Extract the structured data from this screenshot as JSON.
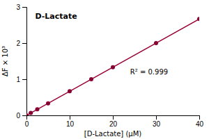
{
  "chart_data": {
    "type": "scatter",
    "title": "D-Lactate",
    "xlabel": "[D-Lactate] (μM)",
    "ylabel": "ΔF × 10³",
    "annotation": "R² = 0.999",
    "series": [
      {
        "type": "line",
        "color": "#990033",
        "x": [
          0,
          40
        ],
        "values": [
          0,
          2.667
        ]
      },
      {
        "type": "scatter",
        "color": "#880033",
        "x": [
          0,
          1,
          2.5,
          5,
          10,
          15,
          20,
          30,
          40
        ],
        "values": [
          0.0,
          0.067,
          0.167,
          0.333,
          0.667,
          1.0,
          1.333,
          2.0,
          2.667
        ]
      }
    ],
    "xlim": [
      0,
      40
    ],
    "ylim": [
      0,
      3
    ],
    "xticks": [
      0,
      10,
      20,
      30,
      40
    ],
    "yticks": [
      0,
      1,
      2,
      3
    ]
  }
}
